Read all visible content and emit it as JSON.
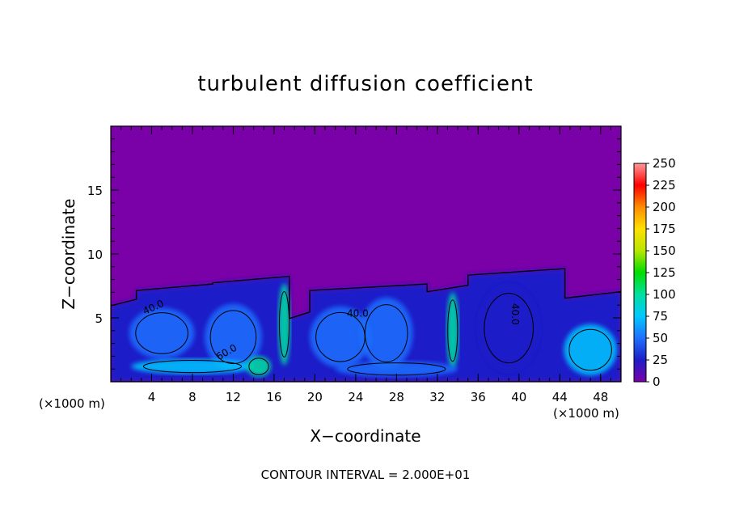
{
  "chart_data": {
    "type": "heatmap",
    "title": "turbulent diffusion coefficient",
    "xlabel": "X−coordinate",
    "ylabel": "Z−coordinate",
    "x_unit_left": "(×1000 m)",
    "x_unit_right": "(×1000 m)",
    "footer": "CONTOUR INTERVAL = 2.000E+01",
    "xlim": [
      0,
      50
    ],
    "ylim": [
      0,
      20
    ],
    "x_ticks": [
      4,
      8,
      12,
      16,
      20,
      24,
      28,
      32,
      36,
      40,
      44,
      48
    ],
    "y_ticks": [
      5,
      10,
      15
    ],
    "colorbar": {
      "min": 0,
      "max": 250,
      "ticks": [
        0,
        25,
        50,
        75,
        100,
        125,
        150,
        175,
        200,
        225,
        250
      ],
      "colors": [
        "#7a00a8",
        "#1e1ec8",
        "#1f6fff",
        "#00c8ff",
        "#00e0a0",
        "#00dd00",
        "#b8e600",
        "#ffe000",
        "#ff8c00",
        "#ff0000",
        "#ff9a9a"
      ]
    },
    "contour_interval": 20,
    "contour_labels": [
      {
        "text": "40.0",
        "x": 4.3,
        "y": 5.6,
        "rotate": -25
      },
      {
        "text": "60.0",
        "x": 11.5,
        "y": 2.1,
        "rotate": -30
      },
      {
        "text": "40.0",
        "x": 24.2,
        "y": 5.1,
        "rotate": 0
      },
      {
        "text": "40.0",
        "x": 39.3,
        "y": 5.3,
        "rotate": 90
      }
    ],
    "turbulent_regions": [
      {
        "x0": 0,
        "x1": 2.5,
        "top": 6.2
      },
      {
        "x0": 2.5,
        "x1": 10,
        "top": 7.4
      },
      {
        "x0": 10,
        "x1": 17.5,
        "top": 8.0
      },
      {
        "x0": 17.5,
        "x1": 19.5,
        "top": 5.2
      },
      {
        "x0": 19.5,
        "x1": 31,
        "top": 7.4
      },
      {
        "x0": 31,
        "x1": 35,
        "top": 7.3
      },
      {
        "x0": 35,
        "x1": 44.5,
        "top": 8.6
      },
      {
        "x0": 44.5,
        "x1": 50,
        "top": 6.8
      }
    ]
  }
}
